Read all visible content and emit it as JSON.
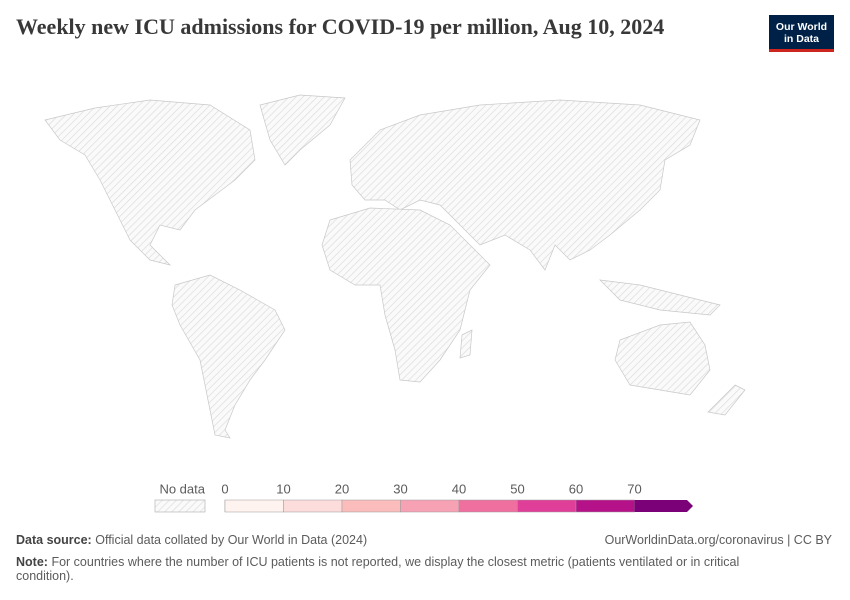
{
  "header": {
    "title": "Weekly new ICU admissions for COVID-19 per million, Aug 10, 2024",
    "logo": [
      "Our World",
      "in Data"
    ]
  },
  "legend": {
    "no_data_label": "No data",
    "ticks": [
      0,
      10,
      20,
      30,
      40,
      50,
      60,
      70
    ],
    "colors": [
      "#fff3ef",
      "#fddcdc",
      "#fbbcbc",
      "#f7a1b5",
      "#ef6f9f",
      "#df3f98",
      "#b5128a",
      "#7a0177"
    ]
  },
  "footer": {
    "source_label": "Data source:",
    "source": "Official data collated by Our World in Data (2024)",
    "url": "OurWorldinData.org/coronavirus | CC BY",
    "note_label": "Note:",
    "note": "For countries where the number of ICU patients is not reported, we display the closest metric (patients ventilated or in critical condition)."
  }
}
